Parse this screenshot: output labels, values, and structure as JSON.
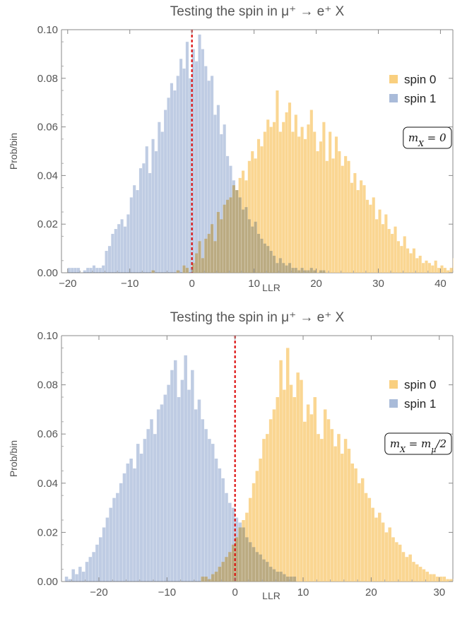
{
  "chart_data": [
    {
      "type": "histogram",
      "title": "Testing the spin in μ⁺ → e⁺ X",
      "xlabel": "LLR",
      "ylabel": "Prob/bin",
      "xlim": [
        -21,
        42
      ],
      "ylim": [
        0,
        0.1
      ],
      "xticks": [
        -20,
        -10,
        0,
        10,
        20,
        30,
        40
      ],
      "yticks": [
        "0.00",
        "0.02",
        "0.04",
        "0.06",
        "0.08",
        "0.10"
      ],
      "annotation": "m_X = 0",
      "legend_position": "top-right",
      "cut_line_x": 0,
      "series": [
        {
          "name": "spin 0",
          "color": "#f9cf7f",
          "bin_width": 0.5,
          "x_start": -6.5,
          "values": [
            0.001,
            0,
            0,
            0,
            0,
            0,
            0,
            0,
            0.001,
            0,
            0.003,
            0.002,
            0,
            0.004,
            0.008,
            0.013,
            0.006,
            0.014,
            0.016,
            0.02,
            0.013,
            0.025,
            0.022,
            0.028,
            0.03,
            0.031,
            0.036,
            0.034,
            0.039,
            0.042,
            0.038,
            0.046,
            0.05,
            0.047,
            0.055,
            0.052,
            0.058,
            0.063,
            0.06,
            0.062,
            0.075,
            0.058,
            0.062,
            0.066,
            0.07,
            0.058,
            0.065,
            0.056,
            0.06,
            0.055,
            0.061,
            0.067,
            0.058,
            0.05,
            0.054,
            0.062,
            0.046,
            0.058,
            0.047,
            0.056,
            0.05,
            0.044,
            0.048,
            0.046,
            0.037,
            0.041,
            0.034,
            0.038,
            0.036,
            0.03,
            0.028,
            0.031,
            0.022,
            0.026,
            0.02,
            0.024,
            0.018,
            0.016,
            0.019,
            0.013,
            0.011,
            0.015,
            0.01,
            0.008,
            0.01,
            0.006,
            0.007,
            0.004,
            0.005,
            0.004,
            0.003,
            0.005,
            0.002,
            0.003,
            0.002,
            0.001,
            0.002,
            0.006,
            0.001,
            0.002,
            0.001,
            0,
            0.001,
            0,
            0.002,
            0,
            0.001,
            0,
            0,
            0.001,
            0,
            0.002,
            0,
            0,
            0,
            0,
            0,
            0,
            0,
            0,
            0.001,
            0,
            0,
            0,
            0,
            0,
            0,
            0,
            0,
            0,
            0,
            0,
            0,
            0,
            0,
            0,
            0,
            0,
            0,
            0,
            0.002
          ]
        },
        {
          "name": "spin 1",
          "color": "#a9bbd9",
          "bin_width": 0.5,
          "x_start": -20,
          "values": [
            0.002,
            0.002,
            0.002,
            0.002,
            0,
            0.001,
            0.002,
            0.002,
            0.003,
            0.002,
            0.002,
            0.003,
            0.009,
            0.011,
            0.016,
            0.018,
            0.02,
            0.022,
            0.019,
            0.024,
            0.031,
            0.036,
            0.034,
            0.043,
            0.045,
            0.052,
            0.041,
            0.055,
            0.05,
            0.062,
            0.058,
            0.067,
            0.072,
            0.078,
            0.075,
            0.081,
            0.088,
            0.084,
            0.095,
            0.08,
            0.092,
            0.087,
            0.098,
            0.092,
            0.085,
            0.079,
            0.081,
            0.065,
            0.069,
            0.057,
            0.061,
            0.048,
            0.044,
            0.038,
            0.034,
            0.031,
            0.026,
            0.027,
            0.022,
            0.019,
            0.021,
            0.016,
            0.014,
            0.012,
            0.011,
            0.009,
            0.007,
            0.004,
            0.006,
            0.004,
            0.003,
            0.004,
            0.002,
            0.002,
            0.001,
            0.002,
            0.001,
            0.001,
            0.002,
            0.001,
            0,
            0.001,
            0.001
          ]
        }
      ]
    },
    {
      "type": "histogram",
      "title": "Testing the spin in μ⁺ → e⁺ X",
      "xlabel": "LLR",
      "ylabel": "Prob/bin",
      "xlim": [
        -25.5,
        32
      ],
      "ylim": [
        0,
        0.1
      ],
      "xticks": [
        -20,
        -10,
        0,
        10,
        20,
        30
      ],
      "yticks": [
        "0.00",
        "0.02",
        "0.04",
        "0.06",
        "0.08",
        "0.10"
      ],
      "annotation": "m_X = m_μ/2",
      "legend_position": "top-right",
      "cut_line_x": 0,
      "series": [
        {
          "name": "spin 0",
          "color": "#f9cf7f",
          "bin_width": 0.5,
          "x_start": -5,
          "values": [
            0.002,
            0.002,
            0.001,
            0.003,
            0.004,
            0.006,
            0.008,
            0.01,
            0.012,
            0.015,
            0.018,
            0.022,
            0.025,
            0.028,
            0.034,
            0.04,
            0.045,
            0.05,
            0.058,
            0.06,
            0.066,
            0.07,
            0.075,
            0.09,
            0.078,
            0.095,
            0.08,
            0.075,
            0.085,
            0.082,
            0.065,
            0.072,
            0.068,
            0.075,
            0.06,
            0.058,
            0.07,
            0.066,
            0.062,
            0.055,
            0.06,
            0.052,
            0.058,
            0.054,
            0.048,
            0.046,
            0.04,
            0.042,
            0.036,
            0.034,
            0.03,
            0.026,
            0.028,
            0.024,
            0.02,
            0.022,
            0.018,
            0.016,
            0.015,
            0.012,
            0.01,
            0.011,
            0.008,
            0.007,
            0.006,
            0.005,
            0.004,
            0.003,
            0.003,
            0.002,
            0.002,
            0.002,
            0.001,
            0.001,
            0.001,
            0.002
          ]
        },
        {
          "name": "spin 1",
          "color": "#a9bbd9",
          "bin_width": 0.5,
          "x_start": -25,
          "values": [
            0.002,
            0.001,
            0.005,
            0.003,
            0.006,
            0.004,
            0.008,
            0.01,
            0.012,
            0.015,
            0.018,
            0.022,
            0.026,
            0.03,
            0.034,
            0.036,
            0.04,
            0.044,
            0.048,
            0.05,
            0.046,
            0.056,
            0.052,
            0.058,
            0.062,
            0.066,
            0.06,
            0.07,
            0.072,
            0.076,
            0.08,
            0.086,
            0.09,
            0.075,
            0.082,
            0.092,
            0.078,
            0.086,
            0.07,
            0.074,
            0.066,
            0.062,
            0.058,
            0.056,
            0.05,
            0.046,
            0.042,
            0.036,
            0.032,
            0.03,
            0.026,
            0.024,
            0.022,
            0.018,
            0.016,
            0.014,
            0.012,
            0.011,
            0.009,
            0.008,
            0.006,
            0.005,
            0.004,
            0.004,
            0.003,
            0.002,
            0.002,
            0.002
          ]
        }
      ]
    }
  ]
}
